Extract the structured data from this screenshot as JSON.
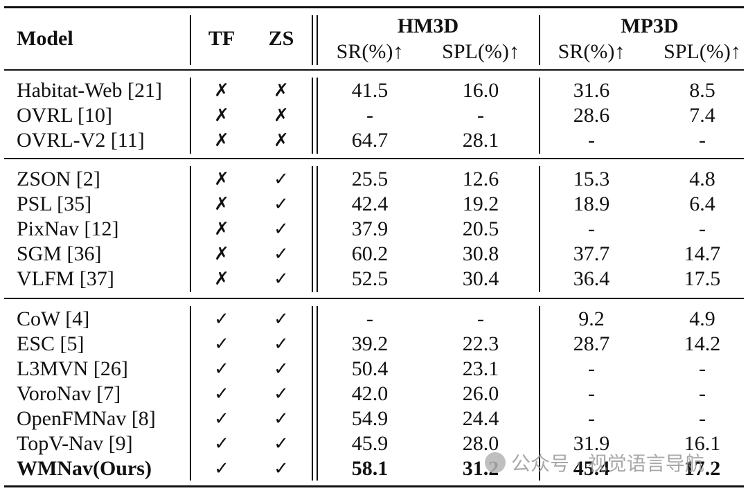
{
  "header": {
    "model": "Model",
    "tf": "TF",
    "zs": "ZS",
    "hm3d": "HM3D",
    "mp3d": "MP3D",
    "sr": "SR(%)↑",
    "spl": "SPL(%)↑"
  },
  "groups": [
    [
      {
        "model": "Habitat-Web [21]",
        "tf": "✗",
        "zs": "✗",
        "hm_sr": "41.5",
        "hm_spl": "16.0",
        "mp_sr": "31.6",
        "mp_spl": "8.5"
      },
      {
        "model": "OVRL [10]",
        "tf": "✗",
        "zs": "✗",
        "hm_sr": "-",
        "hm_spl": "-",
        "mp_sr": "28.6",
        "mp_spl": "7.4"
      },
      {
        "model": "OVRL-V2 [11]",
        "tf": "✗",
        "zs": "✗",
        "hm_sr": "64.7",
        "hm_spl": "28.1",
        "mp_sr": "-",
        "mp_spl": "-"
      }
    ],
    [
      {
        "model": "ZSON [2]",
        "tf": "✗",
        "zs": "✓",
        "hm_sr": "25.5",
        "hm_spl": "12.6",
        "mp_sr": "15.3",
        "mp_spl": "4.8"
      },
      {
        "model": "PSL [35]",
        "tf": "✗",
        "zs": "✓",
        "hm_sr": "42.4",
        "hm_spl": "19.2",
        "mp_sr": "18.9",
        "mp_spl": "6.4"
      },
      {
        "model": "PixNav [12]",
        "tf": "✗",
        "zs": "✓",
        "hm_sr": "37.9",
        "hm_spl": "20.5",
        "mp_sr": "-",
        "mp_spl": "-"
      },
      {
        "model": "SGM [36]",
        "tf": "✗",
        "zs": "✓",
        "hm_sr": "60.2",
        "hm_spl": "30.8",
        "mp_sr": "37.7",
        "mp_spl": "14.7"
      },
      {
        "model": "VLFM [37]",
        "tf": "✗",
        "zs": "✓",
        "hm_sr": "52.5",
        "hm_spl": "30.4",
        "mp_sr": "36.4",
        "mp_spl": "17.5"
      }
    ],
    [
      {
        "model": "CoW [4]",
        "tf": "✓",
        "zs": "✓",
        "hm_sr": "-",
        "hm_spl": "-",
        "mp_sr": "9.2",
        "mp_spl": "4.9"
      },
      {
        "model": "ESC [5]",
        "tf": "✓",
        "zs": "✓",
        "hm_sr": "39.2",
        "hm_spl": "22.3",
        "mp_sr": "28.7",
        "mp_spl": "14.2"
      },
      {
        "model": "L3MVN [26]",
        "tf": "✓",
        "zs": "✓",
        "hm_sr": "50.4",
        "hm_spl": "23.1",
        "mp_sr": "-",
        "mp_spl": "-"
      },
      {
        "model": "VoroNav [7]",
        "tf": "✓",
        "zs": "✓",
        "hm_sr": "42.0",
        "hm_spl": "26.0",
        "mp_sr": "-",
        "mp_spl": "-"
      },
      {
        "model": "OpenFMNav [8]",
        "tf": "✓",
        "zs": "✓",
        "hm_sr": "54.9",
        "hm_spl": "24.4",
        "mp_sr": "-",
        "mp_spl": "-"
      },
      {
        "model": "TopV-Nav [9]",
        "tf": "✓",
        "zs": "✓",
        "hm_sr": "45.9",
        "hm_spl": "28.0",
        "mp_sr": "31.9",
        "mp_spl": "16.1"
      },
      {
        "model": "WMNav(Ours)",
        "tf": "✓",
        "zs": "✓",
        "hm_sr": "58.1",
        "hm_spl": "31.2",
        "mp_sr": "45.4",
        "mp_spl": "17.2",
        "bold": true
      }
    ]
  ],
  "watermark": "公众号 · 视觉语言导航"
}
